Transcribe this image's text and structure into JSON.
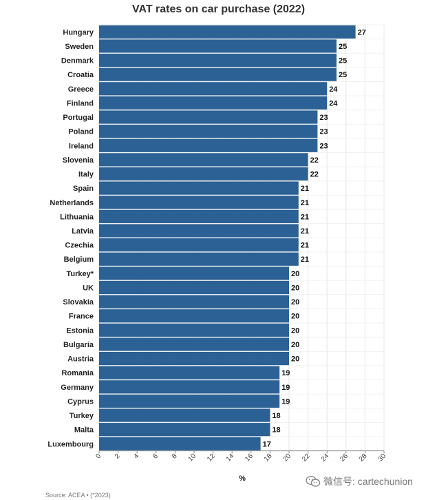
{
  "colors": {
    "bar": "#2b6195",
    "grid": "#e4e4e4",
    "axis": "#888888"
  },
  "source": "Source: ACEA • (*2023)",
  "watermark": {
    "icon": "wechat-icon",
    "text": "微信号: cartechunion"
  },
  "chart_data": {
    "type": "bar",
    "orientation": "horizontal",
    "title": "VAT rates on car purchase (2022)",
    "xlabel": "%",
    "ylabel": "",
    "xlim": [
      0,
      30
    ],
    "xticks": [
      0,
      2,
      4,
      6,
      8,
      10,
      12,
      14,
      16,
      18,
      20,
      22,
      24,
      26,
      28,
      30
    ],
    "grid": true,
    "categories": [
      "Hungary",
      "Sweden",
      "Denmark",
      "Croatia",
      "Greece",
      "Finland",
      "Portugal",
      "Poland",
      "Ireland",
      "Slovenia",
      "Italy",
      "Spain",
      "Netherlands",
      "Lithuania",
      "Latvia",
      "Czechia",
      "Belgium",
      "Turkey*",
      "UK",
      "Slovakia",
      "France",
      "Estonia",
      "Bulgaria",
      "Austria",
      "Romania",
      "Germany",
      "Cyprus",
      "Turkey",
      "Malta",
      "Luxembourg"
    ],
    "values": [
      27,
      25,
      25,
      25,
      24,
      24,
      23,
      23,
      23,
      22,
      22,
      21,
      21,
      21,
      21,
      21,
      21,
      20,
      20,
      20,
      20,
      20,
      20,
      20,
      19,
      19,
      19,
      18,
      18,
      17
    ]
  }
}
